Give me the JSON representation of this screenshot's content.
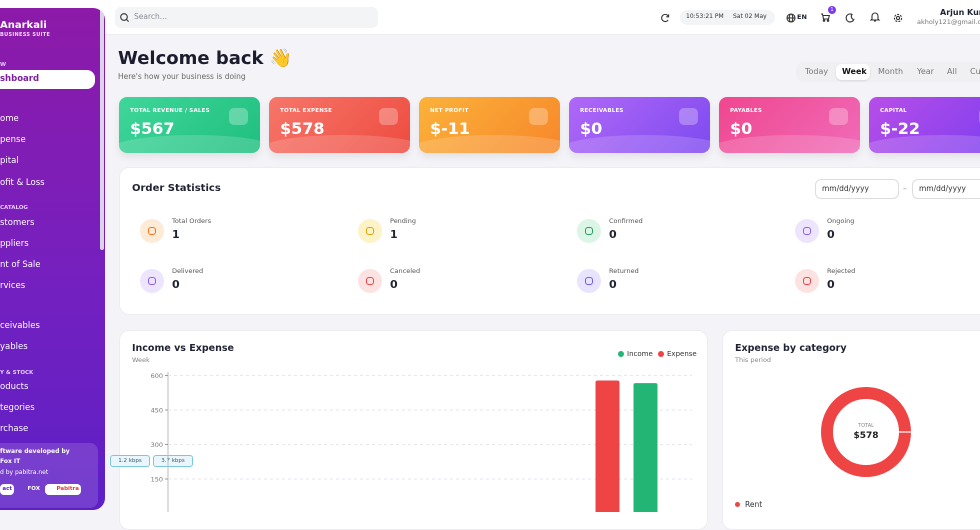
{
  "sidebar": {
    "brand": "Anarkali",
    "tagline": "BUSINESS SUITE",
    "section_labels": [
      "W",
      "CATALOG",
      "Y & STOCK"
    ],
    "items": [
      "shboard",
      "ome",
      "pense",
      "pital",
      "ofit & Loss",
      "stomers",
      "ppliers",
      "nt of Sale",
      "rvices",
      "ceivables",
      "yables",
      "oducts",
      "tegories",
      "rchase"
    ],
    "active_item": 0,
    "footer": {
      "lines": [
        "ftware developed by",
        "Fox IT",
        "d by pabitra.net"
      ],
      "buttons": [
        "act",
        "FOX",
        "Pabitra"
      ]
    }
  },
  "network": [
    "1.2 kbps",
    "3.7 kbps"
  ],
  "topbar": {
    "search_placeholder": "Search...",
    "time": "10:53:21 PM",
    "date": "Sat 02 May",
    "language": "EN",
    "cart_badge": "1",
    "user_name": "Arjun Kum",
    "user_email": "akholy121@gmail.co"
  },
  "header": {
    "title": "Welcome back 👋",
    "subtitle": "Here's how your business is doing",
    "periods": [
      "Today",
      "Week",
      "Month",
      "Year",
      "All",
      "Cu"
    ],
    "active_period": 1
  },
  "kpis": [
    {
      "label": "TOTAL REVENUE / SALES",
      "value": "$567",
      "colors": [
        "#3fd69a",
        "#1fbf7f"
      ]
    },
    {
      "label": "TOTAL EXPENSE",
      "value": "$578",
      "colors": [
        "#f7766a",
        "#ee4b3f"
      ]
    },
    {
      "label": "NET PROFIT",
      "value": "$-11",
      "colors": [
        "#fbb23a",
        "#f7872a"
      ]
    },
    {
      "label": "RECEIVABLES",
      "value": "$0",
      "colors": [
        "#b068f7",
        "#7e4af0"
      ]
    },
    {
      "label": "PAYABLES",
      "value": "$0",
      "colors": [
        "#f0468f",
        "#f06bb8"
      ]
    },
    {
      "label": "CAPITAL",
      "value": "$-22",
      "colors": [
        "#b84ee8",
        "#7a3ef0"
      ]
    }
  ],
  "orders": {
    "title": "Order Statistics",
    "dates": [
      "mm/dd/yyyy",
      "mm/dd/yyyy"
    ],
    "separator": "–",
    "stats": [
      {
        "label": "Total Orders",
        "value": 1,
        "color": "#f97316",
        "bg": "#fdebd8"
      },
      {
        "label": "Pending",
        "value": 1,
        "color": "#d9a406",
        "bg": "#fdf3c7"
      },
      {
        "label": "Confirmed",
        "value": 0,
        "color": "#22a05b",
        "bg": "#dcf5e6"
      },
      {
        "label": "Ongoing",
        "value": 0,
        "color": "#8b5cf6",
        "bg": "#ede4fd"
      },
      {
        "label": "Delivered",
        "value": 0,
        "color": "#8b5cf6",
        "bg": "#ede4fd"
      },
      {
        "label": "Canceled",
        "value": 0,
        "color": "#ef4444",
        "bg": "#fde2e2"
      },
      {
        "label": "Returned",
        "value": 0,
        "color": "#6d5cf6",
        "bg": "#e8e4fd"
      },
      {
        "label": "Rejected",
        "value": 0,
        "color": "#ef4444",
        "bg": "#fde2e2"
      }
    ]
  },
  "income_chart": {
    "type": "bar",
    "title": "Income vs Expense",
    "subtitle": "Week",
    "categories": [
      null,
      null,
      null,
      null
    ],
    "series": [
      {
        "name": "Income",
        "color": "#22b573",
        "values": [
          0,
          0,
          0,
          567
        ]
      },
      {
        "name": "Expense",
        "color": "#ef4444",
        "values": [
          0,
          0,
          0,
          578
        ]
      }
    ],
    "ylim": [
      0,
      600
    ],
    "yticks": [
      150,
      300,
      450,
      600
    ],
    "grid": true
  },
  "expense_chart": {
    "type": "pie",
    "title": "Expense by category",
    "subtitle": "This period",
    "center_label": "TOTAL",
    "total": "$578",
    "categories": [
      "Rent"
    ],
    "values": [
      578
    ],
    "colors": [
      "#ef4444"
    ]
  }
}
